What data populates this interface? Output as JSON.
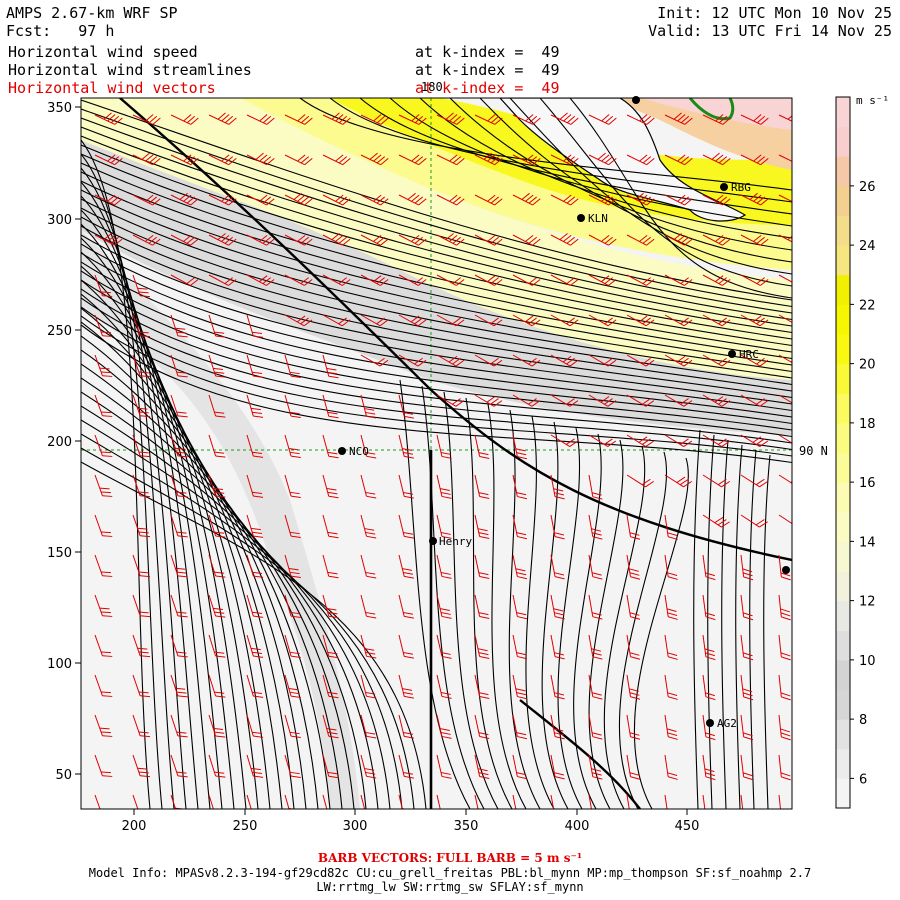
{
  "header": {
    "model": "AMPS 2.67-km WRF SP",
    "fcst": "Fcst:   97 h",
    "init": "Init: 12 UTC Mon 10 Nov 25",
    "valid": "Valid: 13 UTC Fri 14 Nov 25",
    "fields": [
      {
        "label": "Horizontal wind speed",
        "level": "at k-index =  49",
        "color": "#000000"
      },
      {
        "label": "Horizontal wind streamlines",
        "level": "at k-index =  49",
        "color": "#000000"
      },
      {
        "label": "Horizontal wind vectors",
        "level": "at k-index =  49",
        "color": "#e00000"
      }
    ]
  },
  "map": {
    "x_ticks": [
      "200",
      "250",
      "300",
      "350",
      "400",
      "450"
    ],
    "y_ticks": [
      "350",
      "300",
      "250",
      "200",
      "150",
      "100",
      "50"
    ],
    "meridian_label": "180",
    "parallel_label": "90 N",
    "stations": [
      {
        "id": "RBG"
      },
      {
        "id": "KLN"
      },
      {
        "id": "HRC"
      },
      {
        "id": "NCO"
      },
      {
        "id": "Henry"
      },
      {
        "id": "AG2"
      }
    ]
  },
  "colorbar": {
    "unit": "m s⁻¹",
    "labels": [
      "26",
      "24",
      "22",
      "20",
      "18",
      "16",
      "14",
      "12",
      "10",
      "8",
      "6"
    ],
    "bins": [
      {
        "value": 5,
        "color": "#f4f4f4"
      },
      {
        "value": 6,
        "color": "#ececec"
      },
      {
        "value": 7,
        "color": "#e2e2e2"
      },
      {
        "value": 8,
        "color": "#d6d6d6"
      },
      {
        "value": 9,
        "color": "#d3d3d3"
      },
      {
        "value": 10,
        "color": "#dedede"
      },
      {
        "value": 11,
        "color": "#e9e9e3"
      },
      {
        "value": 12,
        "color": "#f1f1dc"
      },
      {
        "value": 13,
        "color": "#f7f7d2"
      },
      {
        "value": 14,
        "color": "#fbfbc4"
      },
      {
        "value": 15,
        "color": "#fbfbb4"
      },
      {
        "value": 16,
        "color": "#fbfb98"
      },
      {
        "value": 17,
        "color": "#fbfb80"
      },
      {
        "value": 18,
        "color": "#fbfb60"
      },
      {
        "value": 19,
        "color": "#f9f938"
      },
      {
        "value": 20,
        "color": "#f8f810"
      },
      {
        "value": 21,
        "color": "#f6f600"
      },
      {
        "value": 22,
        "color": "#f0f000"
      },
      {
        "value": 23,
        "color": "#f5e680"
      },
      {
        "value": 24,
        "color": "#f4dd8a"
      },
      {
        "value": 25,
        "color": "#f4d090"
      },
      {
        "value": 26,
        "color": "#f6c8a8"
      },
      {
        "value": 27,
        "color": "#f8cece"
      },
      {
        "value": 28,
        "color": "#f9d4d6"
      }
    ]
  },
  "footer": {
    "barb_note": "BARB VECTORS:  FULL BARB = 5 m s⁻¹",
    "model_info": "Model Info: MPASv8.2.3-194-gf29cd82c CU:cu_grell_freitas PBL:bl_mynn MP:mp_thompson SF:sf_noahmp 2.7",
    "model_info2": "LW:rrtmg_lw SW:rrtmg_sw SFLAY:sf_mynn"
  }
}
